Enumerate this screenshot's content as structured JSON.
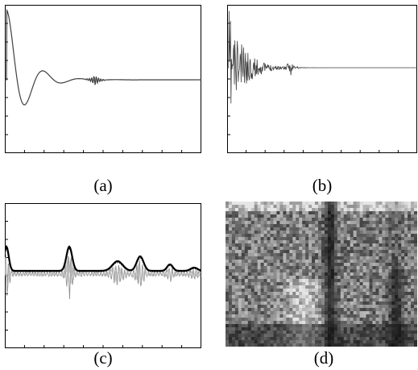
{
  "figure": {
    "panels": [
      {
        "id": "a",
        "caption": "(a)",
        "kind": "damped-oscillation-plot"
      },
      {
        "id": "b",
        "caption": "(b)",
        "kind": "noisy-decay-signal-plot"
      },
      {
        "id": "c",
        "caption": "(c)",
        "kind": "envelope-overlay-plot"
      },
      {
        "id": "d",
        "caption": "(d)",
        "kind": "speckle-ultrasound-image"
      }
    ]
  },
  "colors": {
    "axis": "#000000",
    "trace": "#404040",
    "trace_light": "#8a8a8a",
    "envelope": "#000000",
    "image_dark": "#0a0a0a",
    "image_light": "#e6e6e6"
  }
}
